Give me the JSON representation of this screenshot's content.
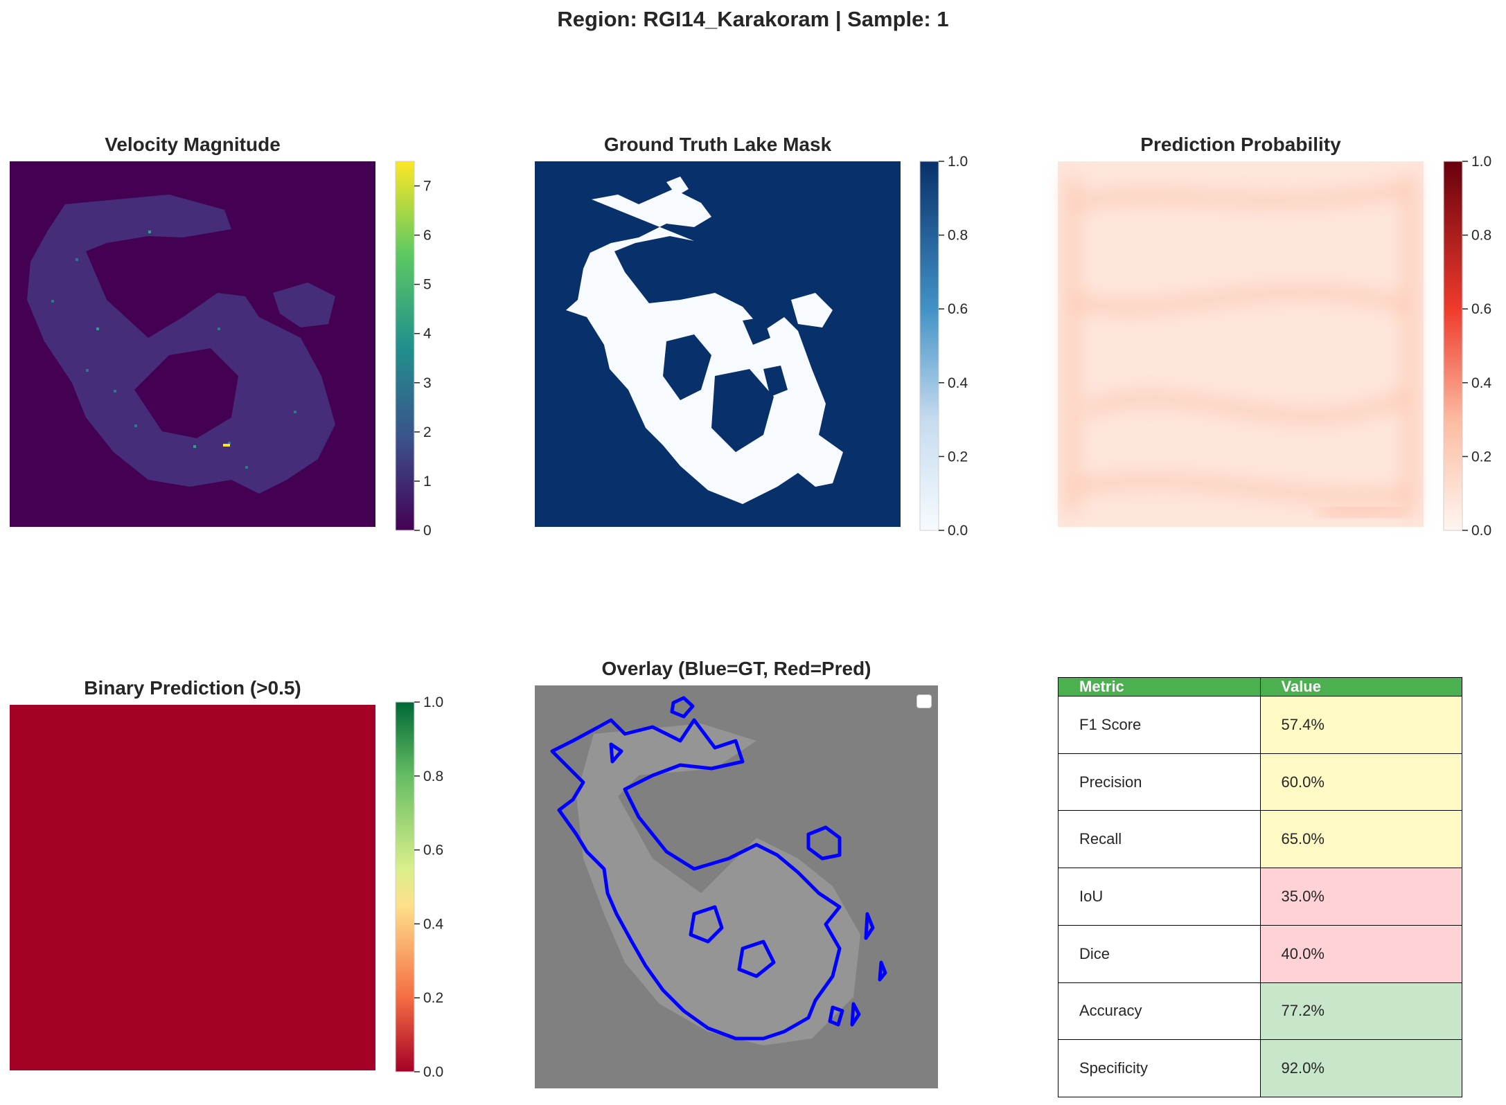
{
  "figure": {
    "suptitle": "Region: RGI14_Karakoram | Sample: 1"
  },
  "panels": {
    "velocity": {
      "title": "Velocity Magnitude",
      "cmap": "viridis",
      "vmin": 0,
      "vmax": 7.5,
      "ticks": [
        "0",
        "1",
        "2",
        "3",
        "4",
        "5",
        "6",
        "7"
      ]
    },
    "gt_mask": {
      "title": "Ground Truth Lake Mask",
      "cmap": "Blues",
      "vmin": 0,
      "vmax": 1,
      "ticks": [
        "0.0",
        "0.2",
        "0.4",
        "0.6",
        "0.8",
        "1.0"
      ]
    },
    "prob": {
      "title": "Prediction Probability",
      "cmap": "Reds",
      "vmin": 0,
      "vmax": 1,
      "ticks": [
        "0.0",
        "0.2",
        "0.4",
        "0.6",
        "0.8",
        "1.0"
      ]
    },
    "binary": {
      "title": "Binary Prediction (>0.5)",
      "cmap": "RdYlGn",
      "vmin": 0,
      "vmax": 1,
      "ticks": [
        "0.0",
        "0.2",
        "0.4",
        "0.6",
        "0.8",
        "1.0"
      ]
    },
    "overlay": {
      "title": "Overlay (Blue=GT, Red=Pred)"
    }
  },
  "metrics_table": {
    "header": [
      "Metric",
      "Value"
    ],
    "header_color": "#4caf50",
    "rows": [
      {
        "metric": "F1 Score",
        "value": "57.4%",
        "color": "#fff9c4"
      },
      {
        "metric": "Precision",
        "value": "60.0%",
        "color": "#fff9c4"
      },
      {
        "metric": "Recall",
        "value": "65.0%",
        "color": "#fff9c4"
      },
      {
        "metric": "IoU",
        "value": "35.0%",
        "color": "#ffd3d6"
      },
      {
        "metric": "Dice",
        "value": "40.0%",
        "color": "#ffd3d6"
      },
      {
        "metric": "Accuracy",
        "value": "77.2%",
        "color": "#c8e6c9"
      },
      {
        "metric": "Specificity",
        "value": "92.0%",
        "color": "#c8e6c9"
      }
    ]
  },
  "chart_data": [
    {
      "type": "heatmap",
      "title": "Velocity Magnitude",
      "colorbar_range": [
        0,
        7.5
      ],
      "colorbar_ticks": [
        0,
        1,
        2,
        3,
        4,
        5,
        6,
        7
      ],
      "colormap": "viridis"
    },
    {
      "type": "heatmap",
      "title": "Ground Truth Lake Mask",
      "colorbar_range": [
        0,
        1
      ],
      "colorbar_ticks": [
        0.0,
        0.2,
        0.4,
        0.6,
        0.8,
        1.0
      ],
      "colormap": "Blues"
    },
    {
      "type": "heatmap",
      "title": "Prediction Probability",
      "colorbar_range": [
        0,
        1
      ],
      "colorbar_ticks": [
        0.0,
        0.2,
        0.4,
        0.6,
        0.8,
        1.0
      ],
      "colormap": "Reds"
    },
    {
      "type": "heatmap",
      "title": "Binary Prediction (>0.5)",
      "colorbar_range": [
        0,
        1
      ],
      "colorbar_ticks": [
        0.0,
        0.2,
        0.4,
        0.6,
        0.8,
        1.0
      ],
      "colormap": "RdYlGn",
      "uniform_value": 0
    },
    {
      "type": "heatmap",
      "title": "Overlay (Blue=GT, Red=Pred)"
    },
    {
      "type": "table",
      "columns": [
        "Metric",
        "Value"
      ],
      "rows": [
        [
          "F1 Score",
          "57.4%"
        ],
        [
          "Precision",
          "60.0%"
        ],
        [
          "Recall",
          "65.0%"
        ],
        [
          "IoU",
          "35.0%"
        ],
        [
          "Dice",
          "40.0%"
        ],
        [
          "Accuracy",
          "77.2%"
        ],
        [
          "Specificity",
          "92.0%"
        ]
      ]
    }
  ]
}
